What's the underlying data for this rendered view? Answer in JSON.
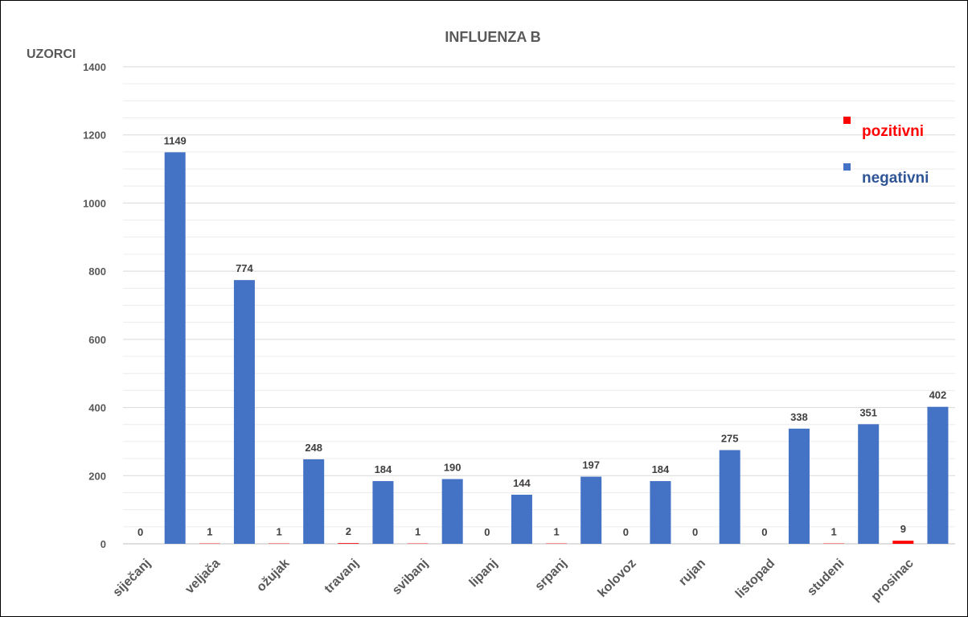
{
  "chart_data": {
    "type": "bar",
    "title": "INFLUENZA B",
    "ylabel": "UZORCI",
    "xlabel": "",
    "ylim": [
      0,
      1400
    ],
    "yticks": [
      0,
      200,
      400,
      600,
      800,
      1000,
      1200,
      1400
    ],
    "grid": true,
    "legend_position": "top-right",
    "categories": [
      "siječanj",
      "veljača",
      "ožujak",
      "travanj",
      "svibanj",
      "lipanj",
      "srpanj",
      "kolovoz",
      "rujan",
      "listopad",
      "studeni",
      "prosinac"
    ],
    "series": [
      {
        "name": "pozitivni",
        "color": "#ff0000",
        "values": [
          0,
          1,
          1,
          2,
          1,
          0,
          1,
          0,
          0,
          0,
          1,
          9
        ]
      },
      {
        "name": "negativni",
        "color": "#4472c4",
        "values": [
          1149,
          774,
          248,
          184,
          190,
          144,
          197,
          184,
          275,
          338,
          351,
          402
        ]
      }
    ],
    "colors": {
      "text": "#595959",
      "data_label": "#404040",
      "negativni_legend": "#2f5597",
      "gridline": "#d9d9d9",
      "minor_gridline": "#ececec"
    }
  }
}
